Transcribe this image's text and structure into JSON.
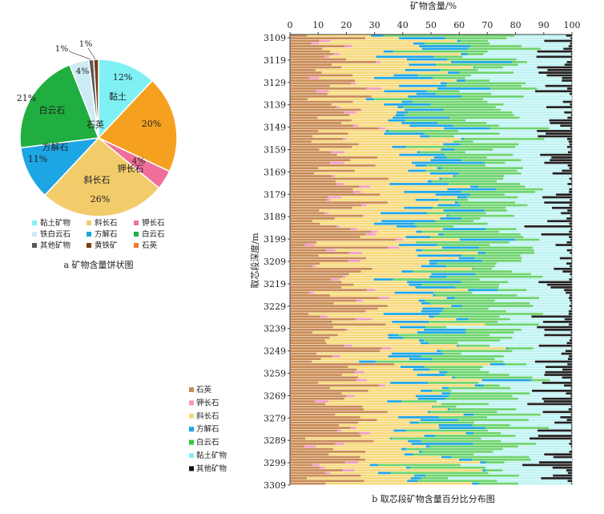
{
  "chart_data": [
    {
      "type": "pie",
      "caption": "a  矿物含量饼状图",
      "start_at": "top, clockwise",
      "slices": [
        {
          "name": "黏土",
          "value": 12,
          "value_label": "12%",
          "color": "#7FF1F5"
        },
        {
          "name": "石英",
          "value": 20,
          "value_label": "20%",
          "color": "#F5A01F"
        },
        {
          "name": "钾长石",
          "value": 4,
          "value_label": "4%",
          "color": "#F06E9A"
        },
        {
          "name": "斜长石",
          "value": 26,
          "value_label": "26%",
          "color": "#F2CB6B"
        },
        {
          "name": "方解石",
          "value": 11,
          "value_label": "11%",
          "color": "#1DA6E4"
        },
        {
          "name": "白云石",
          "value": 21,
          "value_label": "21%",
          "color": "#1FAE3F"
        },
        {
          "name": "铁白云石",
          "value": 4,
          "value_label": "4%",
          "color": "#CDEBF5"
        },
        {
          "name": "其他矿物",
          "value": 1,
          "value_label": "1%",
          "color": "#595959"
        },
        {
          "name": "黄铁矿",
          "value": 1,
          "value_label": "1%",
          "color": "#7A3E14"
        }
      ],
      "legend": [
        {
          "name": "黏土矿物",
          "color": "#7FF1F5"
        },
        {
          "name": "斜长石",
          "color": "#F2CB6B"
        },
        {
          "name": "钾长石",
          "color": "#F06E9A"
        },
        {
          "name": "铁白云石",
          "color": "#CDEBF5"
        },
        {
          "name": "方解石",
          "color": "#1DA6E4"
        },
        {
          "name": "白云石",
          "color": "#1FAE3F"
        },
        {
          "name": "其他矿物",
          "color": "#595959"
        },
        {
          "name": "黄铁矿",
          "color": "#7A3E14"
        },
        {
          "name": "石英",
          "color": "#F07A2A"
        }
      ]
    },
    {
      "type": "stacked-horizontal-bar",
      "caption": "b  取芯段矿物含量百分比分布图",
      "xlabel": "矿物含量/%",
      "ylabel": "取芯段深度/m",
      "xlim": [
        0,
        100
      ],
      "xticks": [
        "0",
        "10",
        "20",
        "30",
        "40",
        "50",
        "60",
        "70",
        "80",
        "90",
        "100"
      ],
      "ylim": [
        3109,
        3309
      ],
      "yticks": [
        "3109",
        "3119",
        "3129",
        "3139",
        "3149",
        "3159",
        "3169",
        "3179",
        "3189",
        "3199",
        "3209",
        "3219",
        "3229",
        "3239",
        "3249",
        "3259",
        "3269",
        "3279",
        "3289",
        "3299",
        "3309"
      ],
      "row_count": 170,
      "series": [
        {
          "name": "石英",
          "color": "#C98A55",
          "typical_range": [
            4,
            28
          ]
        },
        {
          "name": "钾长石",
          "color": "#F29AC0",
          "typical_range": [
            0,
            4
          ]
        },
        {
          "name": "斜长石",
          "color": "#F7D97A",
          "typical_range": [
            8,
            36
          ]
        },
        {
          "name": "方解石",
          "color": "#1DA6E4",
          "typical_range": [
            0,
            18
          ]
        },
        {
          "name": "白云石",
          "color": "#6CD36C",
          "typical_range": [
            4,
            30
          ]
        },
        {
          "name": "黏土矿物",
          "color": "#BFF3F3",
          "typical_range": [
            6,
            26
          ]
        },
        {
          "name": "其他矿物",
          "color": "#222222",
          "typical_range": [
            0,
            12
          ]
        }
      ],
      "legend": [
        {
          "name": "石英",
          "color": "#C98A55"
        },
        {
          "name": "钾长石",
          "color": "#F29AC0"
        },
        {
          "name": "斜长石",
          "color": "#F7D97A"
        },
        {
          "name": "方解石",
          "color": "#1DA6E4"
        },
        {
          "name": "白云石",
          "color": "#2ECC40"
        },
        {
          "name": "黏土矿物",
          "color": "#7FF1F5"
        },
        {
          "name": "其他矿物",
          "color": "#111111"
        }
      ]
    }
  ]
}
